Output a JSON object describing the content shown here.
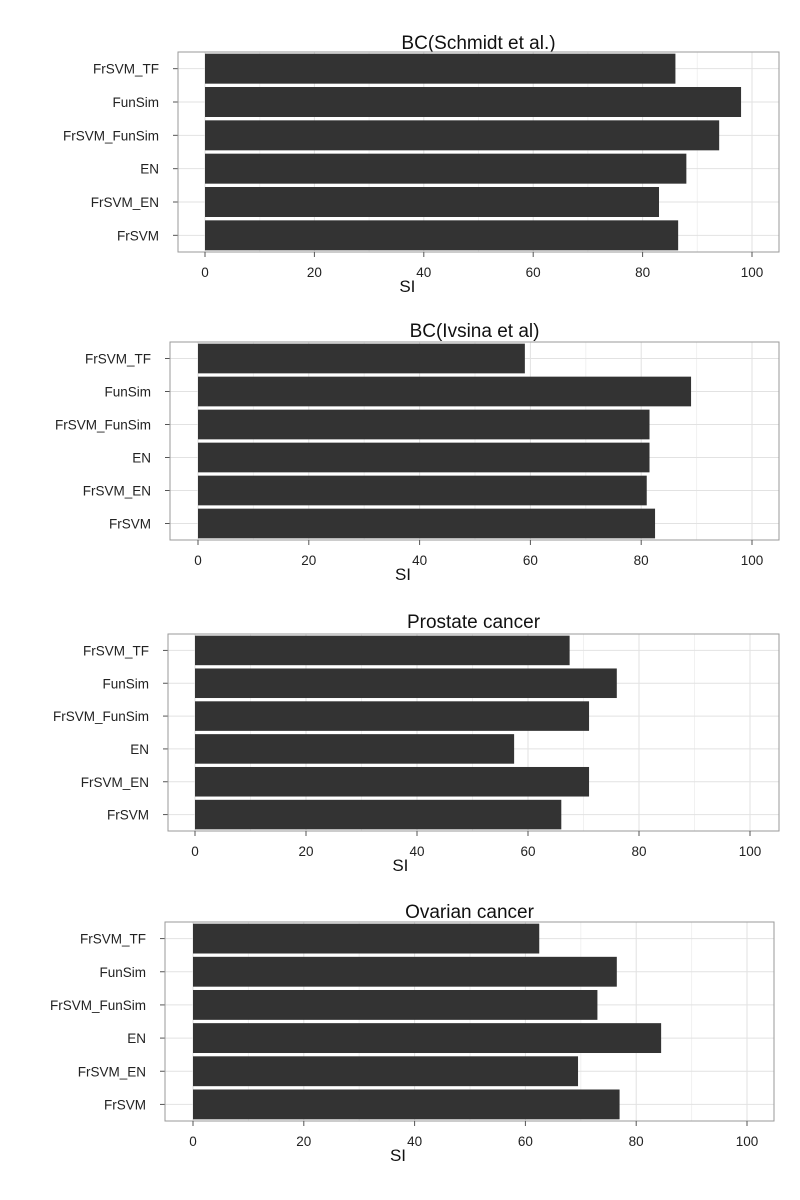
{
  "chart_data": [
    {
      "type": "bar",
      "orientation": "horizontal",
      "title": "BC(Schmidt et al.)",
      "categories": [
        "FrSVM_TF",
        "FunSim",
        "FrSVM_FunSim",
        "EN",
        "FrSVM_EN",
        "FrSVM"
      ],
      "values": [
        86,
        98,
        94,
        88,
        83,
        86.5
      ],
      "xlabel": "SI",
      "xlim": [
        0,
        100
      ],
      "xticks": [
        0,
        20,
        40,
        60,
        80,
        100
      ],
      "bar_color": "#333333",
      "grid": true
    },
    {
      "type": "bar",
      "orientation": "horizontal",
      "title": "BC(Ivsina et al)",
      "categories": [
        "FrSVM_TF",
        "FunSim",
        "FrSVM_FunSim",
        "EN",
        "FrSVM_EN",
        "FrSVM"
      ],
      "values": [
        59,
        89,
        81.5,
        81.5,
        81,
        82.5
      ],
      "xlabel": "SI",
      "xlim": [
        0,
        100
      ],
      "xticks": [
        0,
        20,
        40,
        60,
        80,
        100
      ],
      "bar_color": "#333333",
      "grid": true
    },
    {
      "type": "bar",
      "orientation": "horizontal",
      "title": "Prostate cancer",
      "categories": [
        "FrSVM_TF",
        "FunSim",
        "FrSVM_FunSim",
        "EN",
        "FrSVM_EN",
        "FrSVM"
      ],
      "values": [
        67.5,
        76,
        71,
        57.5,
        71,
        66
      ],
      "xlabel": "SI",
      "xlim": [
        0,
        100
      ],
      "xticks": [
        0,
        20,
        40,
        60,
        80,
        100
      ],
      "bar_color": "#333333",
      "grid": true
    },
    {
      "type": "bar",
      "orientation": "horizontal",
      "title": "Ovarian cancer",
      "categories": [
        "FrSVM_TF",
        "FunSim",
        "FrSVM_FunSim",
        "EN",
        "FrSVM_EN",
        "FrSVM"
      ],
      "values": [
        62.5,
        76.5,
        73,
        84.5,
        69.5,
        77
      ],
      "xlabel": "SI",
      "xlim": [
        0,
        100
      ],
      "xticks": [
        0,
        20,
        40,
        60,
        80,
        100
      ],
      "bar_color": "#333333",
      "grid": true
    }
  ]
}
